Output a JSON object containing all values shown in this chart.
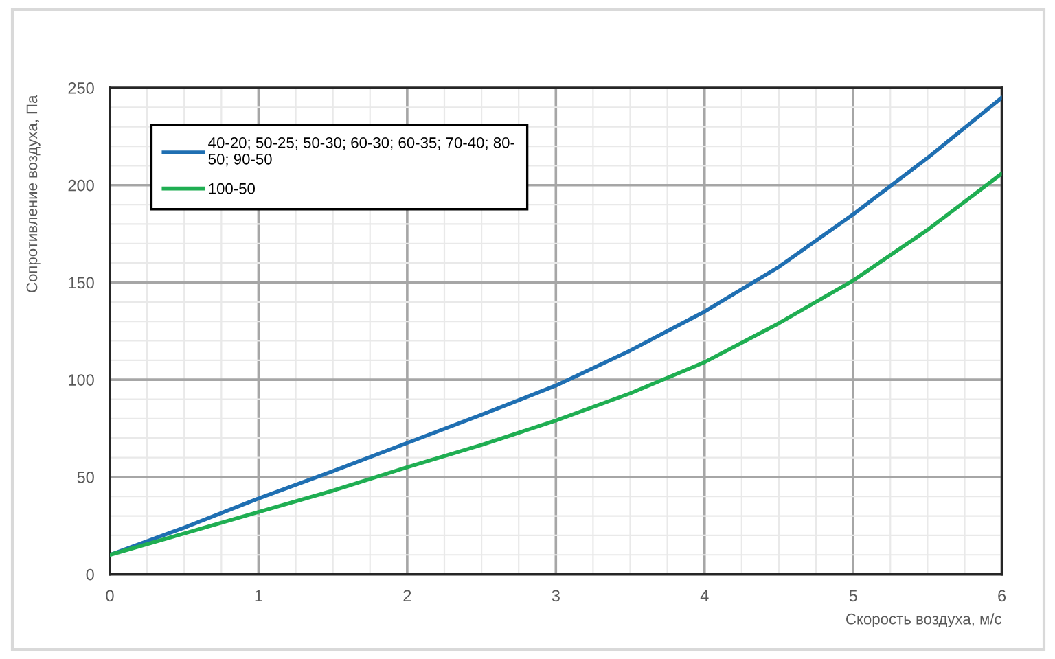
{
  "chart_data": {
    "type": "line",
    "xlabel": "Скорость воздуха, м/с",
    "ylabel": "Сопротивление воздуха, Па",
    "x": [
      0,
      0.5,
      1,
      1.5,
      2,
      2.5,
      3,
      3.5,
      4,
      4.5,
      5,
      5.5,
      6
    ],
    "series": [
      {
        "name": "40-20; 50-25; 50-30; 60-30; 60-35; 70-40; 80-50; 90-50",
        "color": "#1f6fb2",
        "values": [
          10,
          24,
          39,
          53,
          67.5,
          82,
          97,
          115,
          135,
          158,
          185,
          214,
          245
        ]
      },
      {
        "name": "100-50",
        "color": "#1fae52",
        "values": [
          10,
          21,
          32,
          43,
          55,
          66.5,
          79,
          93,
          109,
          129,
          151,
          177,
          206
        ]
      }
    ],
    "xlim": [
      0,
      6
    ],
    "ylim": [
      0,
      250
    ],
    "xticks": [
      0,
      {
        "value": 0.25,
        "label": null
      },
      {
        "value": 0.5,
        "label": null
      },
      {
        "value": 0.75,
        "label": null
      },
      1,
      {
        "value": 1.25,
        "label": null
      },
      {
        "value": 1.5,
        "label": null
      },
      {
        "value": 1.75,
        "label": null
      },
      2,
      {
        "value": 2.25,
        "label": null
      },
      {
        "value": 2.5,
        "label": null
      },
      {
        "value": 2.75,
        "label": null
      },
      3,
      {
        "value": 3.25,
        "label": null
      },
      {
        "value": 3.5,
        "label": null
      },
      {
        "value": 3.75,
        "label": null
      },
      4,
      {
        "value": 4.25,
        "label": null
      },
      {
        "value": 4.5,
        "label": null
      },
      {
        "value": 4.75,
        "label": null
      },
      5,
      {
        "value": 5.25,
        "label": null
      },
      {
        "value": 5.5,
        "label": null
      },
      {
        "value": 5.75,
        "label": null
      },
      6
    ],
    "yticks": [
      0,
      {
        "value": 10,
        "label": null
      },
      {
        "value": 20,
        "label": null
      },
      {
        "value": 30,
        "label": null
      },
      {
        "value": 40,
        "label": null
      },
      50,
      {
        "value": 60,
        "label": null
      },
      {
        "value": 70,
        "label": null
      },
      {
        "value": 80,
        "label": null
      },
      {
        "value": 90,
        "label": null
      },
      100,
      {
        "value": 110,
        "label": null
      },
      {
        "value": 120,
        "label": null
      },
      {
        "value": 130,
        "label": null
      },
      {
        "value": 140,
        "label": null
      },
      150,
      {
        "value": 160,
        "label": null
      },
      {
        "value": 170,
        "label": null
      },
      {
        "value": 180,
        "label": null
      },
      {
        "value": 190,
        "label": null
      },
      200,
      {
        "value": 210,
        "label": null
      },
      {
        "value": 220,
        "label": null
      },
      {
        "value": 230,
        "label": null
      },
      {
        "value": 240,
        "label": null
      },
      250
    ],
    "grid": true,
    "legend": "top left",
    "line_style": "solid"
  }
}
